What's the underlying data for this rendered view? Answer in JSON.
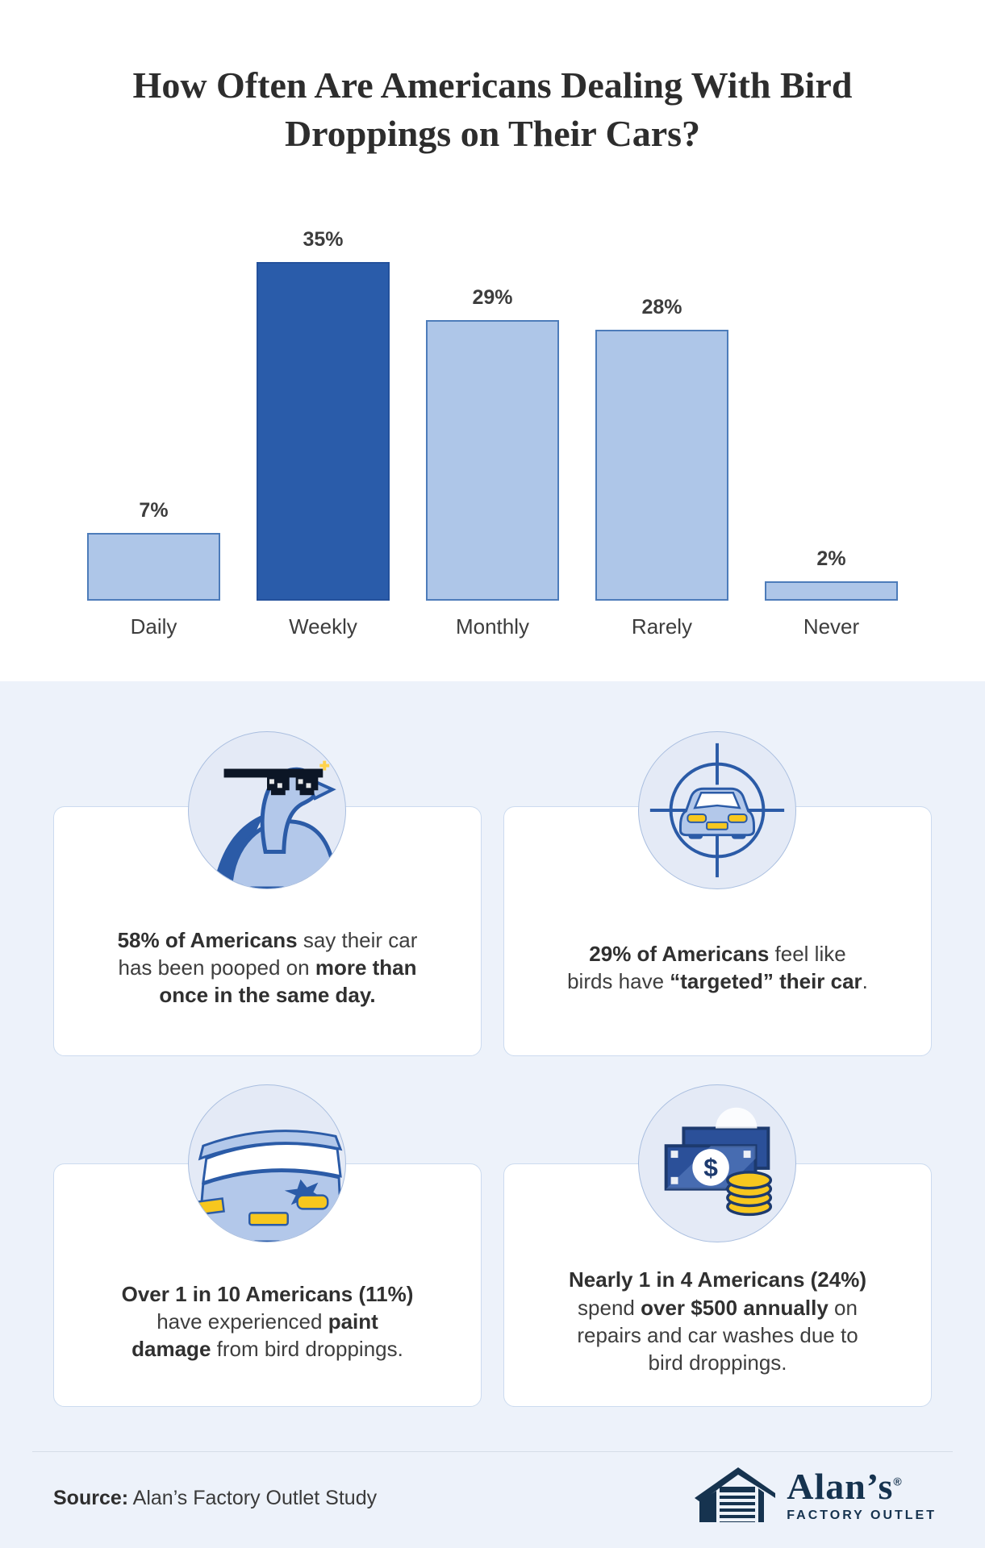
{
  "title": "How Often Are Americans Dealing With Bird Droppings on Their Cars?",
  "chart_data": {
    "type": "bar",
    "title": "How Often Are Americans Dealing With Bird Droppings on Their Cars?",
    "categories": [
      "Daily",
      "Weekly",
      "Monthly",
      "Rarely",
      "Never"
    ],
    "values": [
      7,
      35,
      29,
      28,
      2
    ],
    "value_labels": [
      "7%",
      "35%",
      "29%",
      "28%",
      "2%"
    ],
    "highlight_index": 1,
    "xlabel": "",
    "ylabel": "",
    "ylim": [
      0,
      35
    ],
    "grid": false,
    "legend": null,
    "colors": {
      "bar_fill": "#aec6e8",
      "bar_border": "#4d7cba",
      "highlight_fill": "#2a5caa"
    }
  },
  "cards": [
    {
      "icon": "pigeon-sunglasses-icon",
      "segments": [
        {
          "t": "58% of Americans",
          "b": true
        },
        {
          "t": " say their car has been pooped on ",
          "b": false
        },
        {
          "t": "more than once in the same day.",
          "b": true
        }
      ]
    },
    {
      "icon": "car-target-icon",
      "segments": [
        {
          "t": "29% of Americans",
          "b": true
        },
        {
          "t": " feel like birds have ",
          "b": false
        },
        {
          "t": "“targeted” their car",
          "b": true
        },
        {
          "t": ".",
          "b": false
        }
      ]
    },
    {
      "icon": "car-paint-damage-icon",
      "segments": [
        {
          "t": "Over 1 in 10 Americans (11%)",
          "b": true
        },
        {
          "t": " have experienced ",
          "b": false
        },
        {
          "t": "paint damage",
          "b": true
        },
        {
          "t": " from bird droppings.",
          "b": false
        }
      ]
    },
    {
      "icon": "money-icon",
      "segments": [
        {
          "t": "Nearly 1 in 4 Americans (24%)",
          "b": true
        },
        {
          "t": " spend ",
          "b": false
        },
        {
          "t": "over $500 annually",
          "b": true
        },
        {
          "t": " on repairs and car washes due to bird droppings.",
          "b": false
        }
      ]
    }
  ],
  "footer": {
    "source_label": "Source:",
    "source_text": " Alan’s Factory Outlet Study",
    "logo_name": "Alan’s",
    "logo_reg": "®",
    "logo_sub": "FACTORY OUTLET"
  }
}
